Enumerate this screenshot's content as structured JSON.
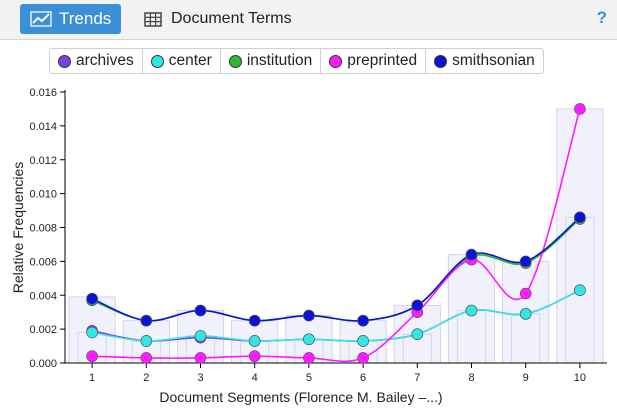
{
  "toolbar": {
    "trends_label": "Trends",
    "document_terms_label": "Document Terms",
    "help_label": "?"
  },
  "colors": {
    "accent": "#3b8fd6",
    "bars": "#eeeefb",
    "bar_border": "#c8c8e6"
  },
  "chart_data": {
    "type": "line",
    "x": [
      1,
      2,
      3,
      4,
      5,
      6,
      7,
      8,
      9,
      10
    ],
    "xlabel": "Document Segments (Florence M. Bailey –...)",
    "ylabel": "Relative Frequencies",
    "ylim": [
      0,
      0.016
    ],
    "yticks": [
      "0.000",
      "0.002",
      "0.004",
      "0.006",
      "0.008",
      "0.010",
      "0.012",
      "0.014",
      "0.016"
    ],
    "legend_position": "top",
    "grid": false,
    "bars": [
      0.0039,
      0.0025,
      0.0031,
      0.0025,
      0.0028,
      0.0025,
      0.0034,
      0.0064,
      0.006,
      0.015
    ],
    "bars_inner": [
      0.0018,
      0.0013,
      0.0016,
      0.0013,
      0.0014,
      0.0013,
      0.0017,
      0.0031,
      0.0029,
      0.0086
    ],
    "series": [
      {
        "name": "archives",
        "color": "#7b3fe4",
        "values": [
          0.0019,
          0.0013,
          0.0015,
          0.0013,
          0.0014,
          0.0013,
          0.0017,
          0.0031,
          0.0029,
          0.0043
        ]
      },
      {
        "name": "center",
        "color": "#33e6e6",
        "values": [
          0.0018,
          0.0013,
          0.0016,
          0.0013,
          0.0014,
          0.0013,
          0.0017,
          0.0031,
          0.0029,
          0.0043
        ]
      },
      {
        "name": "institution",
        "color": "#2eb82e",
        "values": [
          0.0037,
          0.0025,
          0.0031,
          0.0025,
          0.0028,
          0.0025,
          0.0034,
          0.0063,
          0.0059,
          0.0085
        ]
      },
      {
        "name": "preprinted",
        "color": "#ff1aff",
        "values": [
          0.0004,
          0.0003,
          0.0003,
          0.0004,
          0.0003,
          0.0003,
          0.003,
          0.0061,
          0.0041,
          0.015
        ]
      },
      {
        "name": "smithsonian",
        "color": "#0a14d6",
        "values": [
          0.0038,
          0.0025,
          0.0031,
          0.0025,
          0.0028,
          0.0025,
          0.0034,
          0.0064,
          0.006,
          0.0086
        ]
      }
    ]
  }
}
